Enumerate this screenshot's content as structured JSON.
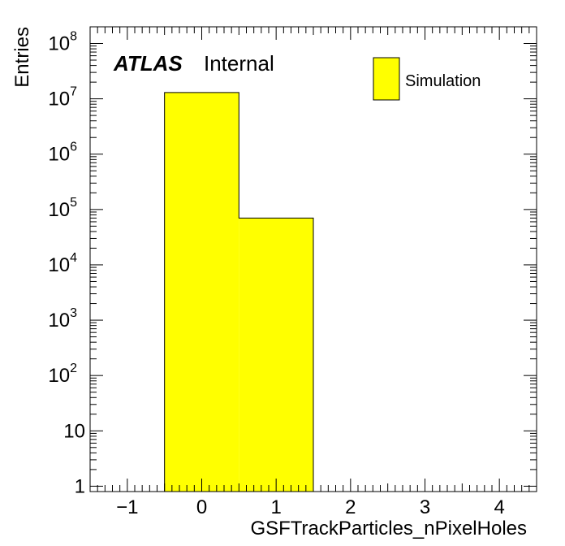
{
  "chart_data": {
    "type": "bar",
    "title": "",
    "xlabel": "GSFTrackParticles_nPixelHoles",
    "ylabel": "Entries",
    "xlim": [
      -1.5,
      4.5
    ],
    "ylim": [
      0.8,
      200000000
    ],
    "yscale": "log",
    "grid": false,
    "bins": [
      {
        "low": -0.5,
        "high": 0.5,
        "value": 13000000
      },
      {
        "low": 0.5,
        "high": 1.5,
        "value": 70000
      }
    ],
    "x_ticks": [
      -1,
      0,
      1,
      2,
      3,
      4
    ],
    "x_tick_labels": [
      "−1",
      "0",
      "1",
      "2",
      "3",
      "4"
    ],
    "y_ticks": [
      {
        "value": 1,
        "base": "1",
        "exp": ""
      },
      {
        "value": 10,
        "base": "10",
        "exp": ""
      },
      {
        "value": 100,
        "base": "10",
        "exp": "2"
      },
      {
        "value": 1000,
        "base": "10",
        "exp": "3"
      },
      {
        "value": 10000,
        "base": "10",
        "exp": "4"
      },
      {
        "value": 100000,
        "base": "10",
        "exp": "5"
      },
      {
        "value": 1000000,
        "base": "10",
        "exp": "6"
      },
      {
        "value": 10000000,
        "base": "10",
        "exp": "7"
      },
      {
        "value": 100000000,
        "base": "10",
        "exp": "8"
      }
    ],
    "fill_color": "#ffff00",
    "line_color": "#000000",
    "legend": {
      "placement": "top-right",
      "entries": [
        {
          "label": "Simulation",
          "color": "#ffff00"
        }
      ]
    },
    "annotation": {
      "bold": "ATLAS",
      "normal": "Internal"
    }
  }
}
